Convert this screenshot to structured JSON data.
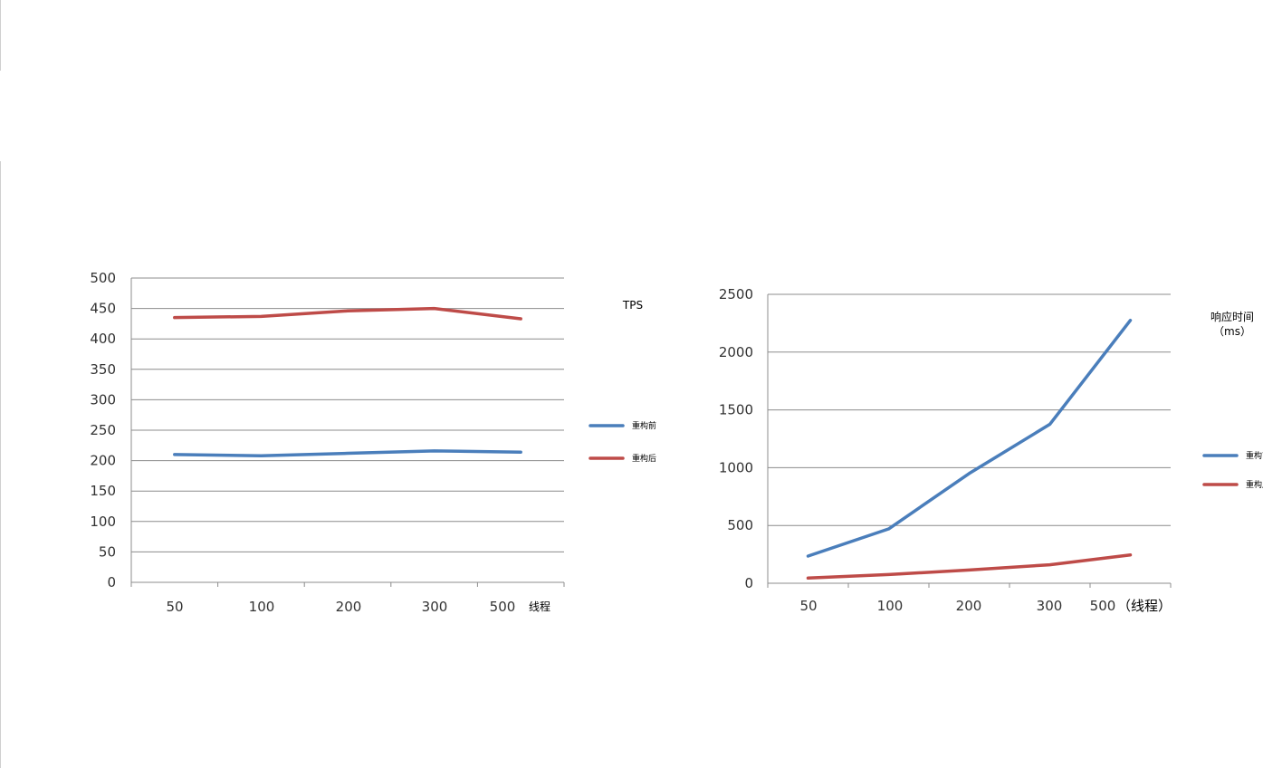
{
  "chart_data": [
    {
      "type": "line",
      "title": "TPS",
      "x_unit_label": "线程",
      "categories": [
        "50",
        "100",
        "200",
        "300",
        "500"
      ],
      "ylim": [
        0,
        500
      ],
      "yticks": [
        0,
        50,
        100,
        150,
        200,
        250,
        300,
        350,
        400,
        450,
        500
      ],
      "grid": true,
      "legend_position": "right",
      "series": [
        {
          "name": "重构前",
          "color": "#4a7ebb",
          "values": [
            210,
            208,
            212,
            216,
            214
          ]
        },
        {
          "name": "重构后",
          "color": "#be4b48",
          "values": [
            435,
            437,
            446,
            450,
            433
          ]
        }
      ]
    },
    {
      "type": "line",
      "title": "响应时间",
      "title_line2": "（ms）",
      "x_unit_label": "（线程）",
      "categories": [
        "50",
        "100",
        "200",
        "300",
        "500"
      ],
      "ylim": [
        0,
        2500
      ],
      "yticks": [
        0,
        500,
        1000,
        1500,
        2000,
        2500
      ],
      "grid": true,
      "legend_position": "right",
      "series": [
        {
          "name": "重构前",
          "color": "#4a7ebb",
          "values": [
            235,
            470,
            950,
            1375,
            2275
          ]
        },
        {
          "name": "重构后",
          "color": "#be4b48",
          "values": [
            45,
            75,
            115,
            160,
            245
          ]
        }
      ]
    }
  ]
}
